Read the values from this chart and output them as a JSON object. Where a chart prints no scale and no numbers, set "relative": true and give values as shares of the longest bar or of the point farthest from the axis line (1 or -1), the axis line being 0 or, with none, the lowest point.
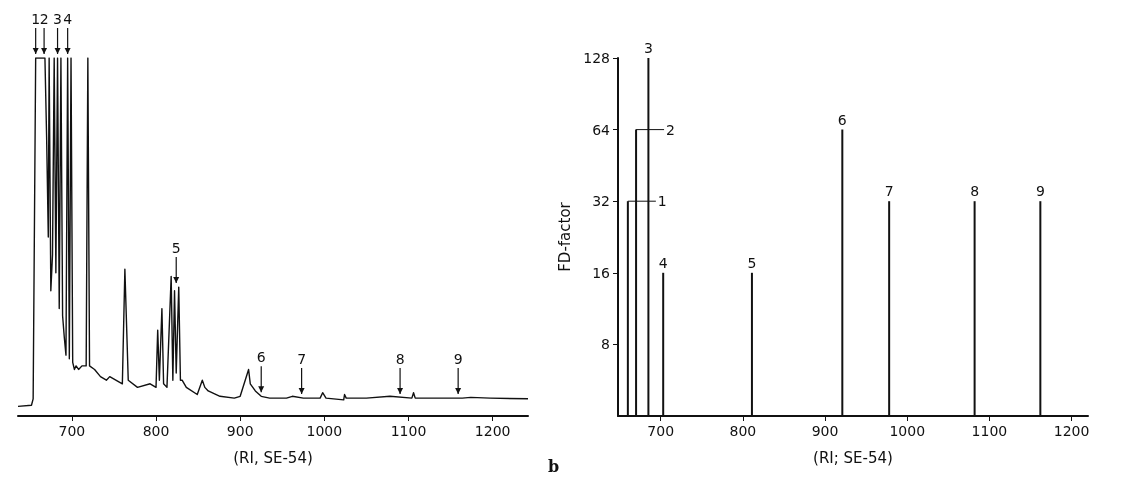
{
  "chart_data": [
    {
      "type": "line",
      "relative": true,
      "xlabel": "(RI, SE-54)",
      "xlim": [
        636,
        1242
      ],
      "xticks": [
        700,
        800,
        900,
        1000,
        1100,
        1200
      ],
      "marker": "none",
      "line_style": "solid",
      "tick_labels": "x",
      "series": [
        {
          "color": "#111111",
          "x": [
            636,
            652,
            654,
            657,
            668,
            670,
            672,
            673,
            675,
            677,
            679,
            681,
            683,
            685,
            687,
            689,
            691,
            693,
            695,
            697,
            699,
            701,
            703,
            705,
            708,
            712,
            717,
            719,
            721,
            727,
            734,
            741,
            745,
            760,
            763,
            767,
            778,
            793,
            800,
            802,
            804,
            807,
            809,
            813,
            818,
            820,
            822,
            824,
            827,
            829,
            831,
            836,
            849,
            855,
            858,
            862,
            876,
            893,
            900,
            910,
            912,
            918,
            925,
            935,
            955,
            962,
            975,
            995,
            998,
            1002,
            1023,
            1024,
            1026,
            1050,
            1078,
            1104,
            1106,
            1108,
            1132,
            1164,
            1174,
            1197,
            1242
          ],
          "values": [
            0.027,
            0.03,
            0.048,
            1,
            1,
            0.78,
            0.5,
            1,
            0.35,
            0.45,
            1,
            0.4,
            1,
            0.3,
            1,
            0.28,
            0.22,
            0.17,
            1,
            0.16,
            1,
            0.15,
            0.13,
            0.14,
            0.13,
            0.14,
            0.14,
            1,
            0.14,
            0.13,
            0.11,
            0.1,
            0.11,
            0.09,
            0.41,
            0.1,
            0.08,
            0.09,
            0.08,
            0.24,
            0.1,
            0.3,
            0.09,
            0.08,
            0.39,
            0.1,
            0.35,
            0.12,
            0.36,
            0.1,
            0.1,
            0.08,
            0.06,
            0.1,
            0.08,
            0.07,
            0.055,
            0.05,
            0.055,
            0.13,
            0.09,
            0.07,
            0.055,
            0.05,
            0.05,
            0.055,
            0.05,
            0.05,
            0.065,
            0.05,
            0.045,
            0.06,
            0.05,
            0.05,
            0.055,
            0.05,
            0.065,
            0.05,
            0.05,
            0.05,
            0.052,
            0.05,
            0.048
          ]
        }
      ],
      "annotations": [
        {
          "text": "1",
          "x": 657,
          "y": 1
        },
        {
          "text": "2",
          "x": 667,
          "y": 1
        },
        {
          "text": "3",
          "x": 683,
          "y": 1
        },
        {
          "text": "4",
          "x": 695,
          "y": 1
        },
        {
          "text": "5",
          "x": 824,
          "y": 0.36
        },
        {
          "text": "6",
          "x": 925,
          "y": 0.055
        },
        {
          "text": "7",
          "x": 973,
          "y": 0.05
        },
        {
          "text": "8",
          "x": 1090,
          "y": 0.05
        },
        {
          "text": "9",
          "x": 1159,
          "y": 0.05
        }
      ]
    },
    {
      "type": "bar",
      "xlabel": "(RI; SE-54)",
      "ylabel": "FD-factor",
      "xlim": [
        648,
        1220
      ],
      "xticks": [
        700,
        800,
        900,
        1000,
        1100,
        1200
      ],
      "ylim": [
        4,
        128
      ],
      "yticks": [
        8,
        16,
        32,
        64,
        128
      ],
      "log": "y",
      "series": [
        {
          "color": "#111111",
          "x": [
            660,
            670,
            685,
            703,
            811,
            921,
            978,
            1082,
            1162
          ],
          "values": [
            32,
            64,
            128,
            16,
            16,
            64,
            32,
            32,
            32
          ]
        }
      ],
      "annotations": [
        {
          "text": "1",
          "x": 660,
          "y": 32
        },
        {
          "text": "2",
          "x": 670,
          "y": 64
        },
        {
          "text": "3",
          "x": 685,
          "y": 128
        },
        {
          "text": "4",
          "x": 703,
          "y": 16
        },
        {
          "text": "5",
          "x": 811,
          "y": 16
        },
        {
          "text": "6",
          "x": 921,
          "y": 64
        },
        {
          "text": "7",
          "x": 978,
          "y": 32
        },
        {
          "text": "8",
          "x": 1082,
          "y": 32
        },
        {
          "text": "9",
          "x": 1162,
          "y": 32
        },
        "b"
      ]
    }
  ]
}
